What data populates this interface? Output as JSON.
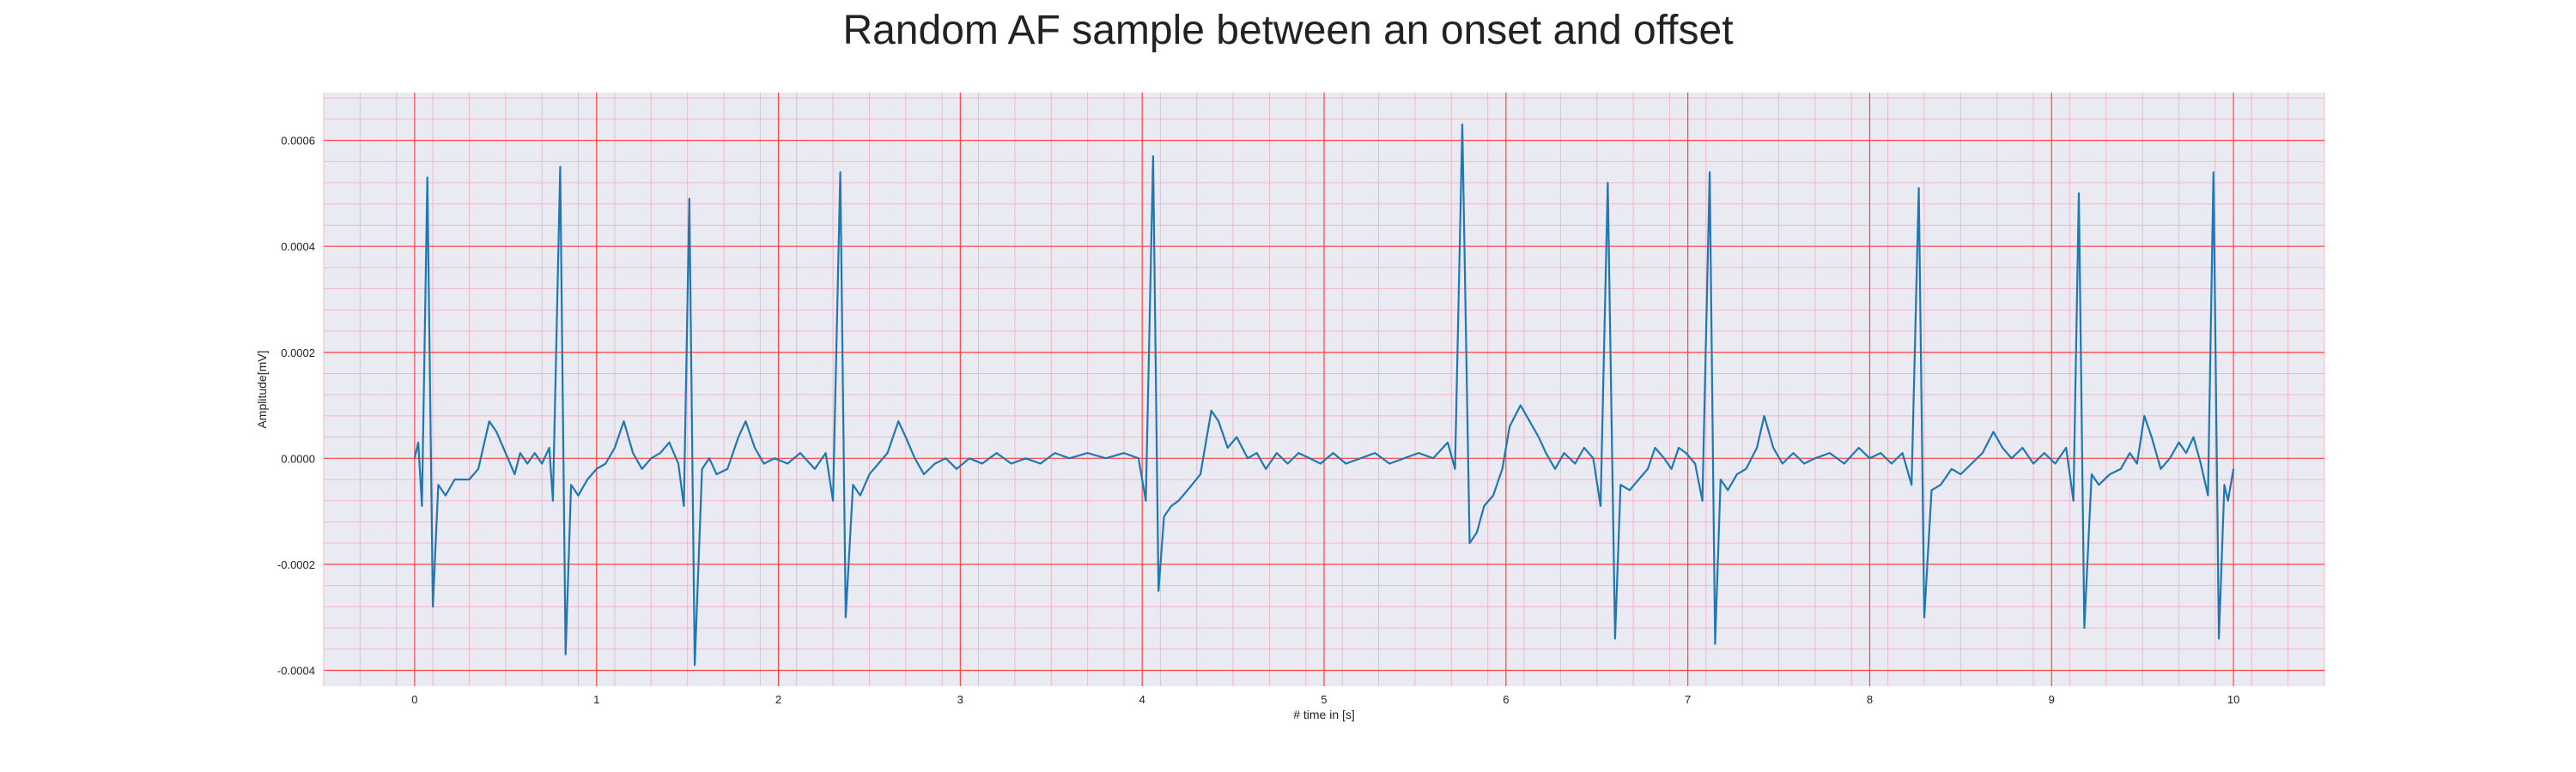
{
  "chart_data": {
    "type": "line",
    "title": "Random AF sample between an onset and offset",
    "xlabel": "# time in [s]",
    "ylabel": "Amplitude[mV]",
    "xlim": [
      -0.5,
      10.5
    ],
    "ylim": [
      -0.00043,
      0.00069
    ],
    "xticks": [
      0,
      1,
      2,
      3,
      4,
      5,
      6,
      7,
      8,
      9,
      10
    ],
    "xtick_labels": [
      "0",
      "1",
      "2",
      "3",
      "4",
      "5",
      "6",
      "7",
      "8",
      "9",
      "10"
    ],
    "yticks": [
      -0.0004,
      -0.0002,
      0.0,
      0.0002,
      0.0004,
      0.0006
    ],
    "ytick_labels": [
      "-0.0004",
      "-0.0002",
      "0.0000",
      "0.0002",
      "0.0004",
      "0.0006"
    ],
    "grid": true,
    "minor_grid": true,
    "colors": {
      "line": "#1f77b4",
      "background": "#eaeaf2",
      "major_grid": "#ff4444",
      "minor_grid": "#f2b8c6"
    },
    "series": [
      {
        "name": "",
        "points": [
          [
            0.0,
            0.0
          ],
          [
            0.02,
            3e-05
          ],
          [
            0.04,
            -9e-05
          ],
          [
            0.07,
            0.00053
          ],
          [
            0.1,
            -0.00028
          ],
          [
            0.13,
            -5e-05
          ],
          [
            0.17,
            -7e-05
          ],
          [
            0.22,
            -4e-05
          ],
          [
            0.3,
            -4e-05
          ],
          [
            0.35,
            -2e-05
          ],
          [
            0.41,
            7e-05
          ],
          [
            0.45,
            5e-05
          ],
          [
            0.5,
            1e-05
          ],
          [
            0.55,
            -3e-05
          ],
          [
            0.58,
            1e-05
          ],
          [
            0.62,
            -1e-05
          ],
          [
            0.66,
            1e-05
          ],
          [
            0.7,
            -1e-05
          ],
          [
            0.74,
            2e-05
          ],
          [
            0.76,
            -8e-05
          ],
          [
            0.8,
            0.00055
          ],
          [
            0.83,
            -0.00037
          ],
          [
            0.86,
            -5e-05
          ],
          [
            0.9,
            -7e-05
          ],
          [
            0.95,
            -4e-05
          ],
          [
            1.0,
            -2e-05
          ],
          [
            1.05,
            -1e-05
          ],
          [
            1.1,
            2e-05
          ],
          [
            1.15,
            7e-05
          ],
          [
            1.2,
            1e-05
          ],
          [
            1.25,
            -2e-05
          ],
          [
            1.3,
            0.0
          ],
          [
            1.35,
            1e-05
          ],
          [
            1.4,
            3e-05
          ],
          [
            1.45,
            -1e-05
          ],
          [
            1.48,
            -9e-05
          ],
          [
            1.51,
            0.00049
          ],
          [
            1.54,
            -0.00039
          ],
          [
            1.58,
            -2e-05
          ],
          [
            1.62,
            0.0
          ],
          [
            1.66,
            -3e-05
          ],
          [
            1.72,
            -2e-05
          ],
          [
            1.78,
            4e-05
          ],
          [
            1.82,
            7e-05
          ],
          [
            1.87,
            2e-05
          ],
          [
            1.92,
            -1e-05
          ],
          [
            1.98,
            0.0
          ],
          [
            2.05,
            -1e-05
          ],
          [
            2.12,
            1e-05
          ],
          [
            2.2,
            -2e-05
          ],
          [
            2.26,
            1e-05
          ],
          [
            2.3,
            -8e-05
          ],
          [
            2.34,
            0.00054
          ],
          [
            2.37,
            -0.0003
          ],
          [
            2.41,
            -5e-05
          ],
          [
            2.45,
            -7e-05
          ],
          [
            2.5,
            -3e-05
          ],
          [
            2.55,
            -1e-05
          ],
          [
            2.6,
            1e-05
          ],
          [
            2.66,
            7e-05
          ],
          [
            2.7,
            4e-05
          ],
          [
            2.75,
            0.0
          ],
          [
            2.8,
            -3e-05
          ],
          [
            2.86,
            -1e-05
          ],
          [
            2.92,
            0.0
          ],
          [
            2.98,
            -2e-05
          ],
          [
            3.05,
            0.0
          ],
          [
            3.12,
            -1e-05
          ],
          [
            3.2,
            1e-05
          ],
          [
            3.28,
            -1e-05
          ],
          [
            3.36,
            0.0
          ],
          [
            3.44,
            -1e-05
          ],
          [
            3.52,
            1e-05
          ],
          [
            3.6,
            0.0
          ],
          [
            3.7,
            1e-05
          ],
          [
            3.8,
            0.0
          ],
          [
            3.9,
            1e-05
          ],
          [
            3.98,
            0.0
          ],
          [
            4.02,
            -8e-05
          ],
          [
            4.06,
            0.00057
          ],
          [
            4.09,
            -0.00025
          ],
          [
            4.12,
            -0.00011
          ],
          [
            4.16,
            -9e-05
          ],
          [
            4.2,
            -8e-05
          ],
          [
            4.25,
            -6e-05
          ],
          [
            4.32,
            -3e-05
          ],
          [
            4.38,
            9e-05
          ],
          [
            4.42,
            7e-05
          ],
          [
            4.47,
            2e-05
          ],
          [
            4.52,
            4e-05
          ],
          [
            4.58,
            0.0
          ],
          [
            4.63,
            1e-05
          ],
          [
            4.68,
            -2e-05
          ],
          [
            4.74,
            1e-05
          ],
          [
            4.8,
            -1e-05
          ],
          [
            4.86,
            1e-05
          ],
          [
            4.92,
            0.0
          ],
          [
            4.98,
            -1e-05
          ],
          [
            5.05,
            1e-05
          ],
          [
            5.12,
            -1e-05
          ],
          [
            5.2,
            0.0
          ],
          [
            5.28,
            1e-05
          ],
          [
            5.36,
            -1e-05
          ],
          [
            5.44,
            0.0
          ],
          [
            5.52,
            1e-05
          ],
          [
            5.6,
            0.0
          ],
          [
            5.68,
            3e-05
          ],
          [
            5.72,
            -2e-05
          ],
          [
            5.76,
            0.00063
          ],
          [
            5.8,
            -0.00016
          ],
          [
            5.84,
            -0.00014
          ],
          [
            5.88,
            -9e-05
          ],
          [
            5.93,
            -7e-05
          ],
          [
            5.98,
            -2e-05
          ],
          [
            6.02,
            6e-05
          ],
          [
            6.08,
            0.0001
          ],
          [
            6.13,
            7e-05
          ],
          [
            6.18,
            4e-05
          ],
          [
            6.22,
            1e-05
          ],
          [
            6.27,
            -2e-05
          ],
          [
            6.32,
            1e-05
          ],
          [
            6.38,
            -1e-05
          ],
          [
            6.43,
            2e-05
          ],
          [
            6.48,
            0.0
          ],
          [
            6.52,
            -9e-05
          ],
          [
            6.56,
            0.00052
          ],
          [
            6.6,
            -0.00034
          ],
          [
            6.63,
            -5e-05
          ],
          [
            6.68,
            -6e-05
          ],
          [
            6.73,
            -4e-05
          ],
          [
            6.78,
            -2e-05
          ],
          [
            6.82,
            2e-05
          ],
          [
            6.87,
            0.0
          ],
          [
            6.91,
            -2e-05
          ],
          [
            6.95,
            2e-05
          ],
          [
            6.99,
            1e-05
          ],
          [
            7.04,
            -1e-05
          ],
          [
            7.08,
            -8e-05
          ],
          [
            7.12,
            0.00054
          ],
          [
            7.15,
            -0.00035
          ],
          [
            7.18,
            -4e-05
          ],
          [
            7.22,
            -6e-05
          ],
          [
            7.27,
            -3e-05
          ],
          [
            7.32,
            -2e-05
          ],
          [
            7.38,
            2e-05
          ],
          [
            7.42,
            8e-05
          ],
          [
            7.47,
            2e-05
          ],
          [
            7.52,
            -1e-05
          ],
          [
            7.58,
            1e-05
          ],
          [
            7.64,
            -1e-05
          ],
          [
            7.7,
            0.0
          ],
          [
            7.78,
            1e-05
          ],
          [
            7.86,
            -1e-05
          ],
          [
            7.94,
            2e-05
          ],
          [
            8.0,
            0.0
          ],
          [
            8.06,
            1e-05
          ],
          [
            8.12,
            -1e-05
          ],
          [
            8.18,
            1e-05
          ],
          [
            8.23,
            -5e-05
          ],
          [
            8.27,
            0.00051
          ],
          [
            8.3,
            -0.0003
          ],
          [
            8.34,
            -6e-05
          ],
          [
            8.39,
            -5e-05
          ],
          [
            8.45,
            -2e-05
          ],
          [
            8.5,
            -3e-05
          ],
          [
            8.56,
            -1e-05
          ],
          [
            8.62,
            1e-05
          ],
          [
            8.68,
            5e-05
          ],
          [
            8.73,
            2e-05
          ],
          [
            8.78,
            0.0
          ],
          [
            8.84,
            2e-05
          ],
          [
            8.9,
            -1e-05
          ],
          [
            8.96,
            1e-05
          ],
          [
            9.02,
            -1e-05
          ],
          [
            9.08,
            2e-05
          ],
          [
            9.12,
            -8e-05
          ],
          [
            9.15,
            0.0005
          ],
          [
            9.18,
            -0.00032
          ],
          [
            9.22,
            -3e-05
          ],
          [
            9.26,
            -5e-05
          ],
          [
            9.32,
            -3e-05
          ],
          [
            9.38,
            -2e-05
          ],
          [
            9.43,
            1e-05
          ],
          [
            9.47,
            -1e-05
          ],
          [
            9.51,
            8e-05
          ],
          [
            9.55,
            4e-05
          ],
          [
            9.6,
            -2e-05
          ],
          [
            9.65,
            0.0
          ],
          [
            9.7,
            3e-05
          ],
          [
            9.74,
            1e-05
          ],
          [
            9.78,
            4e-05
          ],
          [
            9.82,
            -1e-05
          ],
          [
            9.86,
            -7e-05
          ],
          [
            9.89,
            0.00054
          ],
          [
            9.92,
            -0.00034
          ],
          [
            9.95,
            -5e-05
          ],
          [
            9.97,
            -8e-05
          ],
          [
            10.0,
            -2e-05
          ]
        ]
      }
    ]
  }
}
